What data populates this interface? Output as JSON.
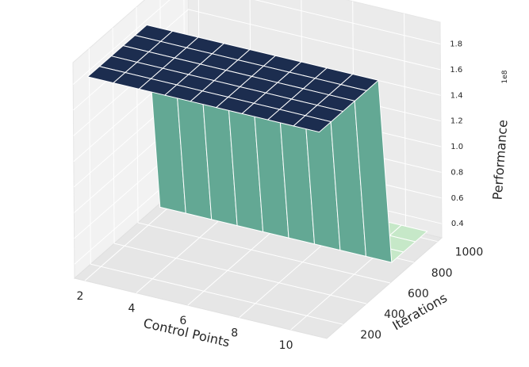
{
  "chart_data": {
    "type": "surface",
    "title": "",
    "xlabel": "Control Points",
    "ylabel": "Iterations",
    "zlabel": "Performance",
    "z_offset_label": "1e8",
    "x_ticks": [
      2,
      4,
      6,
      8,
      10
    ],
    "y_ticks": [
      200,
      400,
      600,
      800,
      1000
    ],
    "z_ticks": [
      "0.4",
      "0.6",
      "0.8",
      "1.0",
      "1.2",
      "1.4",
      "1.6",
      "1.8"
    ],
    "z_tick_values": [
      0.4,
      0.6,
      0.8,
      1.0,
      1.2,
      1.4,
      1.6,
      1.8
    ],
    "xlim": [
      1.6,
      11.4
    ],
    "ylim": [
      64,
      1036
    ],
    "zlim": [
      0.29,
      1.97
    ],
    "x": [
      2,
      3,
      4,
      5,
      6,
      7,
      8,
      9,
      10,
      11
    ],
    "y": [
      100,
      200,
      300,
      400,
      500,
      600,
      700,
      800,
      900,
      1000
    ],
    "z_unit_scale": "1e8",
    "z": [
      [
        1.85,
        1.85,
        1.85,
        1.85,
        1.85,
        1.85,
        1.85,
        1.85,
        1.85,
        1.85
      ],
      [
        1.85,
        1.85,
        1.85,
        1.85,
        1.85,
        1.85,
        1.85,
        1.85,
        1.85,
        1.85
      ],
      [
        1.85,
        1.85,
        1.85,
        1.85,
        1.85,
        1.85,
        1.85,
        1.85,
        1.85,
        1.85
      ],
      [
        1.85,
        1.85,
        1.85,
        1.85,
        1.85,
        1.85,
        1.85,
        1.85,
        1.85,
        1.85
      ],
      [
        1.85,
        1.85,
        1.85,
        1.85,
        1.85,
        1.85,
        1.85,
        1.85,
        1.85,
        1.85
      ],
      [
        1.85,
        1.85,
        1.85,
        1.85,
        1.85,
        1.85,
        1.85,
        1.85,
        1.85,
        1.85
      ],
      [
        0.35,
        0.35,
        0.35,
        0.35,
        0.35,
        0.35,
        0.35,
        0.35,
        0.35,
        0.35
      ],
      [
        0.35,
        0.35,
        0.35,
        0.35,
        0.35,
        0.35,
        0.35,
        0.35,
        0.35,
        0.35
      ],
      [
        0.35,
        0.35,
        0.35,
        0.35,
        0.35,
        0.35,
        0.35,
        0.35,
        0.35,
        0.35
      ],
      [
        0.35,
        0.35,
        0.35,
        0.35,
        0.35,
        0.35,
        0.35,
        0.35,
        0.35,
        0.35
      ]
    ],
    "colormap": [
      "#c6e8c8",
      "#63a894",
      "#2b5370",
      "#1c2d4f"
    ],
    "grid": true,
    "style": "3d-surface"
  }
}
